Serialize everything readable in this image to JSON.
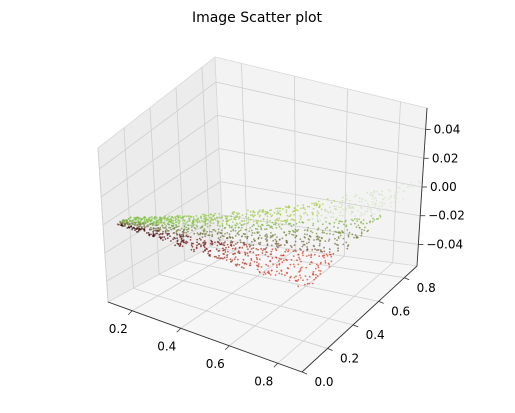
{
  "chart_data": {
    "type": "scatter",
    "projection": "3d",
    "title": "Image Scatter plot",
    "xlabel": "",
    "ylabel": "",
    "zlabel": "",
    "x_ticks": [
      0.2,
      0.4,
      0.6,
      0.8
    ],
    "y_ticks": [
      0.0,
      0.2,
      0.4,
      0.6,
      0.8
    ],
    "z_ticks": [
      -0.04,
      -0.02,
      0.0,
      0.02,
      0.04
    ],
    "x_tick_labels": [
      "0.2",
      "0.4",
      "0.6",
      "0.8"
    ],
    "y_tick_labels": [
      "0.0",
      "0.2",
      "0.4",
      "0.6",
      "0.8"
    ],
    "z_tick_labels": [
      "−0.04",
      "−0.02",
      "0.00",
      "0.02",
      "0.04"
    ],
    "xlim": [
      0.1,
      0.9
    ],
    "ylim": [
      0.0,
      0.9
    ],
    "zlim": [
      -0.055,
      0.055
    ],
    "grid": true,
    "point_colors": {
      "dark": "#2a0a0a",
      "red": "#b5121b",
      "orange_red": "#d93a23",
      "green": "#7bc043",
      "yellow_green": "#c7d34a",
      "pale": "#dde8d6"
    },
    "points": [
      {
        "x": 0.14,
        "y": 0.1,
        "z": 0.0,
        "color": "#2a0a0a"
      },
      {
        "x": 0.22,
        "y": 0.12,
        "z": 0.0,
        "color": "#4a0e0e"
      },
      {
        "x": 0.3,
        "y": 0.14,
        "z": 0.0,
        "color": "#7a1010"
      },
      {
        "x": 0.4,
        "y": 0.16,
        "z": 0.0,
        "color": "#a01218"
      },
      {
        "x": 0.5,
        "y": 0.18,
        "z": 0.0,
        "color": "#b5121b"
      },
      {
        "x": 0.6,
        "y": 0.2,
        "z": 0.0,
        "color": "#c8201e"
      },
      {
        "x": 0.7,
        "y": 0.24,
        "z": 0.0,
        "color": "#d93a23"
      },
      {
        "x": 0.8,
        "y": 0.3,
        "z": 0.0,
        "color": "#e04a2a"
      },
      {
        "x": 0.88,
        "y": 0.4,
        "z": 0.0,
        "color": "#e05a30"
      },
      {
        "x": 0.3,
        "y": 0.4,
        "z": 0.0,
        "color": "#5a3a28"
      },
      {
        "x": 0.4,
        "y": 0.5,
        "z": 0.0,
        "color": "#6a5a30"
      },
      {
        "x": 0.5,
        "y": 0.6,
        "z": 0.0,
        "color": "#5f8a3a"
      },
      {
        "x": 0.6,
        "y": 0.7,
        "z": 0.0,
        "color": "#7bc043"
      },
      {
        "x": 0.7,
        "y": 0.78,
        "z": 0.0,
        "color": "#9ccc4c"
      },
      {
        "x": 0.8,
        "y": 0.85,
        "z": 0.0,
        "color": "#c7d34a"
      },
      {
        "x": 0.88,
        "y": 0.88,
        "z": 0.0,
        "color": "#dde8d6"
      },
      {
        "x": 0.55,
        "y": 0.4,
        "z": 0.0,
        "color": "#8a5a2a"
      },
      {
        "x": 0.65,
        "y": 0.5,
        "z": 0.0,
        "color": "#a07a32"
      },
      {
        "x": 0.75,
        "y": 0.55,
        "z": 0.0,
        "color": "#b7a23c"
      },
      {
        "x": 0.45,
        "y": 0.3,
        "z": 0.0,
        "color": "#7a2a1a"
      }
    ]
  }
}
